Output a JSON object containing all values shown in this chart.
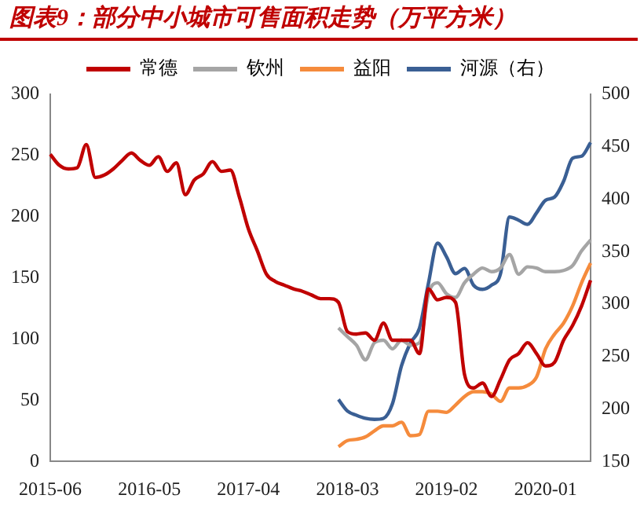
{
  "chart_data": {
    "type": "line",
    "title": "图表9：部分中小城市可售面积走势（万平方米）",
    "categories": [
      "2015-06",
      null,
      null,
      null,
      null,
      null,
      null,
      null,
      null,
      null,
      null,
      "2016-05",
      null,
      null,
      null,
      null,
      null,
      null,
      null,
      null,
      null,
      null,
      "2017-04",
      null,
      null,
      null,
      null,
      null,
      null,
      null,
      null,
      null,
      null,
      "2018-03",
      null,
      null,
      null,
      null,
      null,
      null,
      null,
      null,
      null,
      null,
      "2019-02",
      null,
      null,
      null,
      null,
      null,
      null,
      null,
      null,
      null,
      null,
      "2020-01",
      null,
      null,
      null,
      null,
      null
    ],
    "series": [
      {
        "name": "常德",
        "color": "#c00000",
        "values": [
          251,
          242,
          239,
          240,
          259,
          232,
          234,
          239,
          246,
          252,
          246,
          242,
          249,
          237,
          244,
          218,
          230,
          235,
          245,
          237,
          238,
          216,
          190,
          172,
          153,
          147,
          144,
          141,
          139,
          136,
          133,
          133,
          130,
          106,
          104,
          105,
          99,
          113,
          99,
          99,
          99,
          88,
          141,
          132,
          134,
          130,
          71,
          60,
          64,
          53,
          67,
          83,
          88,
          97,
          88,
          78,
          81,
          99,
          111,
          127,
          148
        ]
      },
      {
        "name": "钦州",
        "color": "#a5a5a5",
        "values": [
          null,
          null,
          null,
          null,
          null,
          null,
          null,
          null,
          null,
          null,
          null,
          null,
          null,
          null,
          null,
          null,
          null,
          null,
          null,
          null,
          null,
          null,
          null,
          null,
          null,
          null,
          null,
          null,
          null,
          null,
          null,
          null,
          109,
          102,
          95,
          83,
          97,
          99,
          92,
          99,
          95,
          97,
          137,
          146,
          137,
          134,
          146,
          153,
          158,
          155,
          158,
          169,
          153,
          159,
          158,
          155,
          155,
          156,
          160,
          172,
          181
        ]
      },
      {
        "name": "益阳",
        "color": "#f58b3c",
        "values": [
          null,
          null,
          null,
          null,
          null,
          null,
          null,
          null,
          null,
          null,
          null,
          null,
          null,
          null,
          null,
          null,
          null,
          null,
          null,
          null,
          null,
          null,
          null,
          null,
          null,
          null,
          null,
          null,
          null,
          null,
          null,
          null,
          12,
          17,
          18,
          20,
          25,
          29,
          29,
          32,
          21,
          22,
          41,
          41,
          40,
          46,
          53,
          57,
          57,
          55,
          49,
          60,
          60,
          62,
          69,
          92,
          104,
          113,
          127,
          146,
          162
        ]
      },
      {
        "name": "河源（右）",
        "color": "#3a5f94",
        "axis": "y2",
        "values": [
          null,
          null,
          null,
          null,
          null,
          null,
          null,
          null,
          null,
          null,
          null,
          null,
          null,
          null,
          null,
          null,
          null,
          null,
          null,
          null,
          null,
          null,
          null,
          null,
          null,
          null,
          null,
          null,
          null,
          null,
          null,
          null,
          209,
          198,
          194,
          191,
          190,
          191,
          205,
          241,
          263,
          277,
          320,
          358,
          345,
          329,
          334,
          318,
          314,
          318,
          329,
          383,
          380,
          376,
          387,
          399,
          402,
          417,
          439,
          441,
          454
        ]
      }
    ],
    "ylim": [
      0,
      300
    ],
    "yticks": [
      0,
      50,
      100,
      150,
      200,
      250,
      300
    ],
    "y2lim": [
      150,
      500
    ],
    "y2ticks": [
      150,
      200,
      250,
      300,
      350,
      400,
      450,
      500
    ],
    "grid": false,
    "legend": "top",
    "marker": "none",
    "line_style": "solid"
  }
}
